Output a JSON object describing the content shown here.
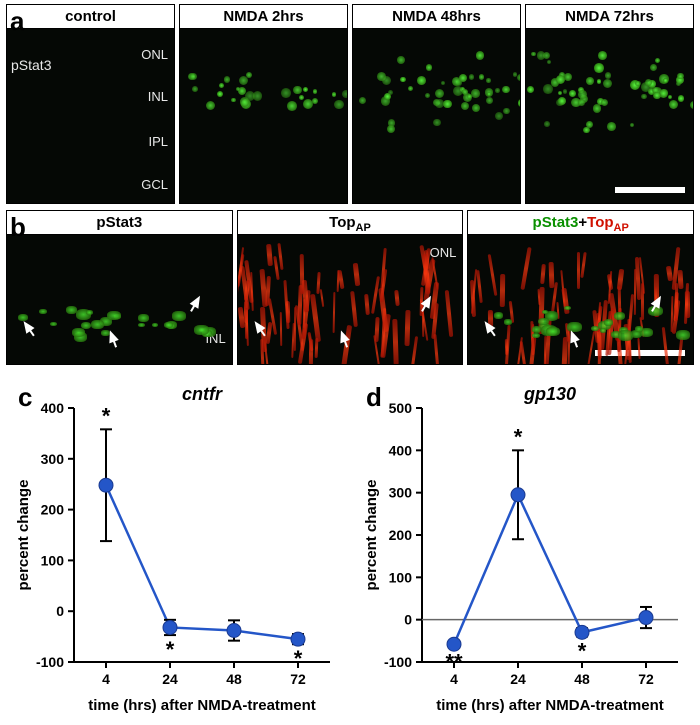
{
  "panel_a": {
    "letter": "a",
    "marker_label": "pStat3",
    "layer_labels": [
      "ONL",
      "INL",
      "IPL",
      "GCL"
    ],
    "headers": [
      "control",
      "NMDA 2hrs",
      "NMDA 48hrs",
      "NMDA 72hrs"
    ],
    "signal_intensity": [
      0.05,
      0.45,
      0.75,
      0.95
    ],
    "bg": "#050805",
    "green": "#46e82c",
    "scalebar_color": "#ffffff"
  },
  "panel_b": {
    "letter": "b",
    "headers_html": [
      "pStat3",
      "Top<sub>AP</sub>",
      "pStat3+Top<sub>AP</sub>"
    ],
    "header_colors": [
      "#000000",
      "#000000",
      null
    ],
    "merge_green": "#0a9800",
    "merge_red": "#d01200",
    "layer_labels": [
      "ONL",
      "INL"
    ],
    "bg": "#070707"
  },
  "chart_c": {
    "letter": "c",
    "title": "cntfr",
    "title_style": "italic",
    "xlabel": "time (hrs) after NMDA-treatment",
    "ylabel": "percent change",
    "x_categories": [
      4,
      24,
      48,
      72
    ],
    "y_ticks": [
      -100,
      0,
      100,
      200,
      300,
      400
    ],
    "ylim": [
      -100,
      400
    ],
    "series": {
      "color": "#2456c8",
      "marker": "circle",
      "marker_size": 7,
      "line_width": 2.5,
      "points": [
        {
          "x": 4,
          "y": 248,
          "err": 110,
          "sig": "*"
        },
        {
          "x": 24,
          "y": -32,
          "err": 15,
          "sig": "*"
        },
        {
          "x": 48,
          "y": -38,
          "err": 20,
          "sig": ""
        },
        {
          "x": 72,
          "y": -55,
          "err": 10,
          "sig": "*"
        }
      ]
    },
    "axis_color": "#000000",
    "tick_fontsize": 14,
    "label_fontsize": 15,
    "title_fontsize": 18,
    "sig_fontsize": 22
  },
  "chart_d": {
    "letter": "d",
    "title": "gp130",
    "title_style": "italic",
    "xlabel": "time (hrs) after NMDA-treatment",
    "ylabel": "percent change",
    "x_categories": [
      4,
      24,
      48,
      72
    ],
    "y_ticks": [
      -100,
      0,
      100,
      200,
      300,
      400,
      500
    ],
    "ylim": [
      -100,
      500
    ],
    "zero_line": true,
    "series": {
      "color": "#2456c8",
      "marker": "circle",
      "marker_size": 7,
      "line_width": 2.5,
      "points": [
        {
          "x": 4,
          "y": -58,
          "err": 8,
          "sig": "**"
        },
        {
          "x": 24,
          "y": 295,
          "err": 105,
          "sig": "*"
        },
        {
          "x": 48,
          "y": -30,
          "err": 10,
          "sig": "*"
        },
        {
          "x": 72,
          "y": 5,
          "err": 25,
          "sig": ""
        }
      ]
    },
    "axis_color": "#000000",
    "tick_fontsize": 14,
    "label_fontsize": 15,
    "title_fontsize": 18,
    "sig_fontsize": 22
  }
}
